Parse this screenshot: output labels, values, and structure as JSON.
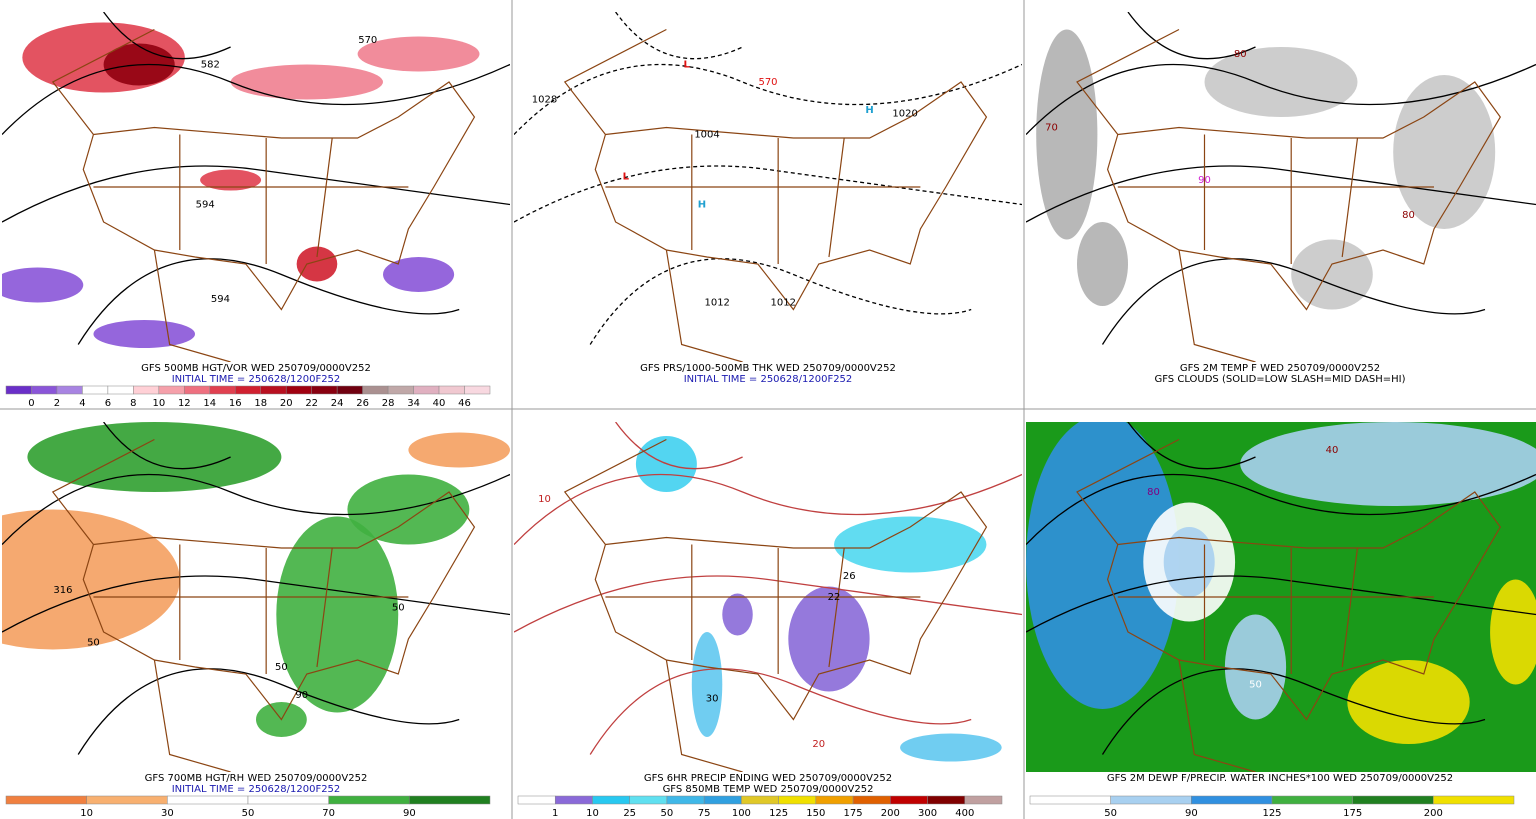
{
  "panels": [
    {
      "captions": [
        "GFS 500MB HGT/VOR WED 250709/0000V252",
        "INITIAL TIME = 250628/1200F252"
      ],
      "map_labels": [
        "570",
        "582",
        "594",
        "594"
      ],
      "colorbar": {
        "labels": [
          0,
          2,
          4,
          6,
          8,
          10,
          12,
          14,
          16,
          18,
          20,
          22,
          24,
          26,
          28,
          34,
          40,
          46
        ],
        "colors": [
          "#6a2fc8",
          "#8a55d8",
          "#a884e2",
          "#ffffff",
          "#ffffff",
          "#ffd0d6",
          "#f5a0aa",
          "#ee7080",
          "#e04050",
          "#d02030",
          "#b81020",
          "#a00010",
          "#880010",
          "#700010",
          "#aa9090",
          "#c0a8a8",
          "#e0b0c0",
          "#f0c8d0",
          "#f8d8e0"
        ]
      }
    },
    {
      "captions": [
        "GFS PRS/1000-500MB THK WED 250709/0000V252",
        "INITIAL TIME = 250628/1200F252"
      ],
      "map_labels": [
        "1028",
        "1012",
        "1004",
        "L",
        "L",
        "H",
        "H",
        "1020",
        "1012",
        "570"
      ]
    },
    {
      "captions": [
        "GFS 2M TEMP F WED 250709/0000V252",
        "GFS CLOUDS (SOLID=LOW SLASH=MID DASH=HI)"
      ],
      "map_labels": [
        "80",
        "90",
        "70",
        "80"
      ]
    },
    {
      "captions": [
        "GFS 700MB HGT/RH WED 250709/0000V252",
        "INITIAL TIME = 250628/1200F252"
      ],
      "map_labels": [
        "50",
        "316",
        "50",
        "90",
        "50"
      ],
      "colorbar": {
        "labels": [
          10,
          30,
          50,
          70,
          90
        ],
        "colors": [
          "#f08040",
          "#f8b070",
          "#ffffff",
          "#ffffff",
          "#40b040",
          "#208020"
        ]
      }
    },
    {
      "captions": [
        "GFS 6HR PRECIP ENDING WED 250709/0000V252",
        "GFS 850MB TEMP WED 250709/0000V252"
      ],
      "map_labels": [
        "10",
        "26",
        "22",
        "20",
        "30"
      ],
      "colorbar": {
        "labels": [
          1,
          10,
          25,
          50,
          75,
          100,
          125,
          150,
          175,
          200,
          300,
          400
        ],
        "colors": [
          "#ffffff",
          "#8a6ad8",
          "#28c8f0",
          "#60e0f0",
          "#40b8e8",
          "#30a0e0",
          "#e0c828",
          "#f0e000",
          "#f0a000",
          "#e06000",
          "#c00000",
          "#800000",
          "#c0a0a0"
        ]
      }
    },
    {
      "captions": [
        "GFS 2M DEWP F/PRECIP. WATER INCHES*100 WED 250709/0000V252"
      ],
      "map_labels": [
        "50",
        "80",
        "40"
      ],
      "colorbar": {
        "labels": [
          50,
          90,
          125,
          175,
          200
        ],
        "colors": [
          "#ffffff",
          "#a8d0f0",
          "#3090e0",
          "#40b040",
          "#208020",
          "#f0e000"
        ]
      }
    }
  ]
}
